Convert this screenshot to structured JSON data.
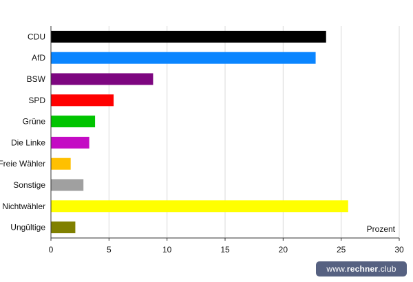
{
  "chart_data": {
    "type": "bar",
    "orientation": "horizontal",
    "categories": [
      "CDU",
      "AfD",
      "BSW",
      "SPD",
      "Grüne",
      "Die Linke",
      "Freie Wähler",
      "Sonstige",
      "Nichtwähler",
      "Ungültige"
    ],
    "values": [
      23.7,
      22.8,
      8.8,
      5.4,
      3.8,
      3.3,
      1.7,
      2.8,
      25.6,
      2.1
    ],
    "colors": [
      "#000000",
      "#0a85ff",
      "#7d0680",
      "#ff0000",
      "#00c400",
      "#c40bc4",
      "#ffc000",
      "#a0a0a0",
      "#ffff00",
      "#808000"
    ],
    "xlim": [
      0,
      30
    ],
    "xticks": [
      0,
      5,
      10,
      15,
      20,
      25,
      30
    ],
    "xlabel": "Prozent",
    "grid": true
  },
  "watermark": {
    "prefix": "www.",
    "brand": "rechner",
    "suffix": ".club"
  }
}
